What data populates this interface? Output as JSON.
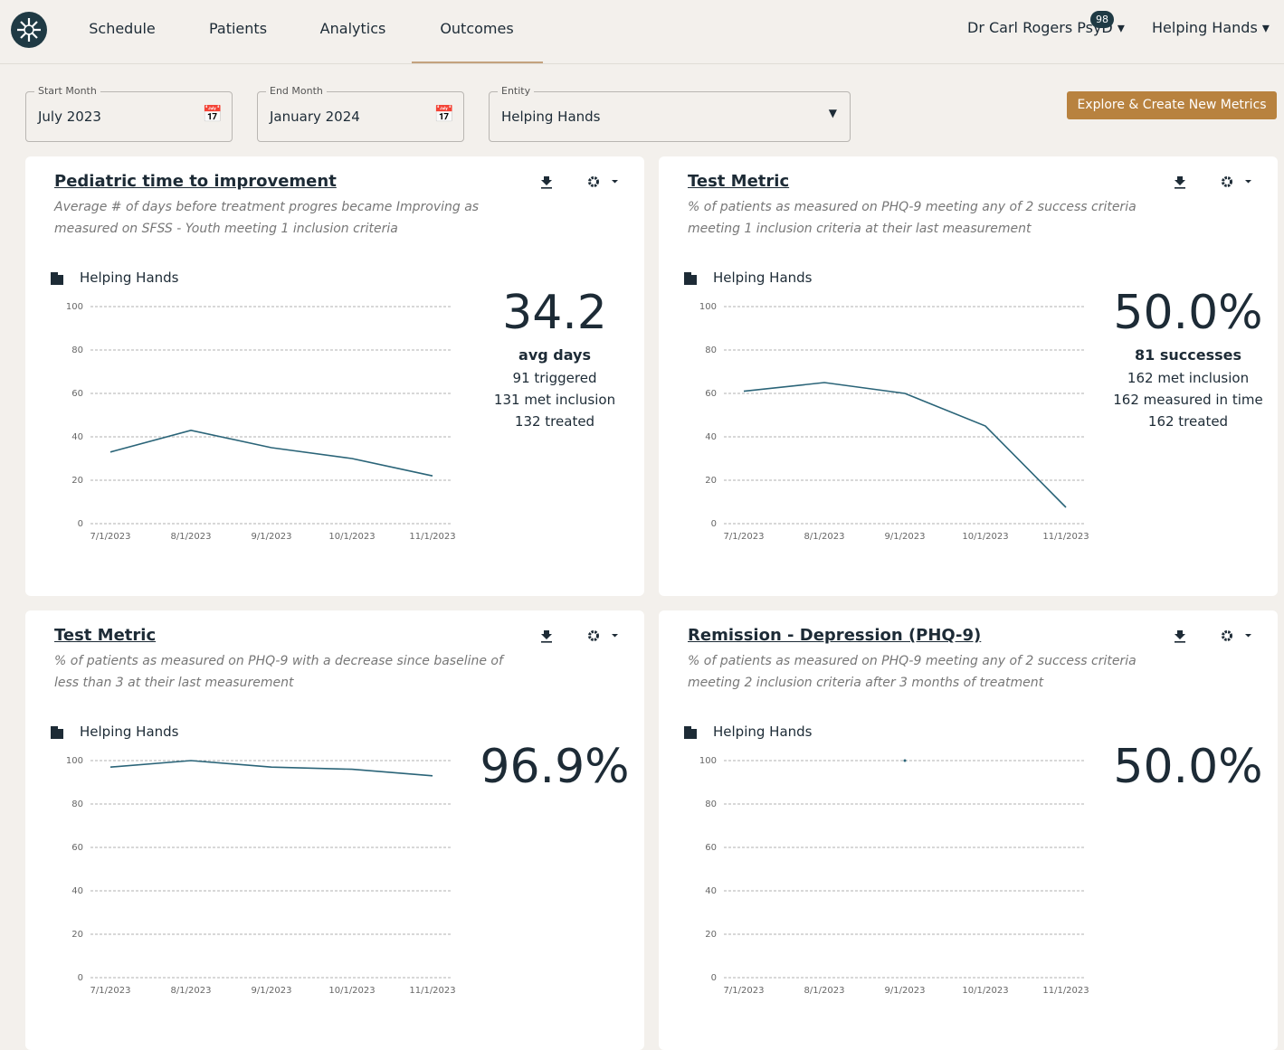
{
  "nav": {
    "items": [
      "Schedule",
      "Patients",
      "Analytics",
      "Outcomes"
    ],
    "active": 3,
    "user": "Dr Carl Rogers PsyD",
    "badge": "98",
    "org": "Helping Hands"
  },
  "filters": [
    {
      "label": "Start Month",
      "value": "July 2023"
    },
    {
      "label": "End Month",
      "value": "January 2024"
    },
    {
      "label": "Entity",
      "value": "Helping Hands"
    }
  ],
  "button": "Explore & Create New Metrics",
  "cards": [
    {
      "title": "Pediatric time to improvement",
      "description": "Average # of days before treatment progres became Improving as measured on SFSS - Youth meeting 1 inclusion criteria",
      "entity": "Helping Hands",
      "headline": "34.2",
      "stats": [
        "avg days",
        "91 triggered",
        "131 met inclusion",
        "132 treated"
      ],
      "chart_data": {
        "type": "line",
        "categories": [
          "7/1/2023",
          "8/1/2023",
          "9/1/2023",
          "10/1/2023",
          "11/1/2023"
        ],
        "values": [
          33,
          43,
          35,
          30,
          22
        ],
        "color": "#2a6478",
        "ylim": [
          0,
          100
        ],
        "yticks": [
          0,
          20,
          40,
          60,
          80,
          100
        ],
        "grid": true
      }
    },
    {
      "title": "Test Metric",
      "description": "% of patients as measured on PHQ-9 meeting any of 2 success criteria meeting 1 inclusion criteria at their last measurement",
      "entity": "Helping Hands",
      "headline": "50.0%",
      "stats": [
        "81 successes",
        "162 met inclusion",
        "162 measured in time",
        "162 treated"
      ],
      "chart_data": {
        "type": "line",
        "categories": [
          "7/1/2023",
          "8/1/2023",
          "9/1/2023",
          "10/1/2023",
          "11/1/2023"
        ],
        "values": [
          61,
          65,
          60,
          45,
          7.5
        ],
        "color": "#2a6478",
        "ylim": [
          0,
          100
        ],
        "yticks": [
          0,
          20,
          40,
          60,
          80,
          100
        ],
        "grid": true
      }
    },
    {
      "title": "Test Metric",
      "description": "% of patients as measured on PHQ-9 with a decrease since baseline of less than 3 at their last measurement",
      "entity": "Helping Hands",
      "headline": "96.9%",
      "stats": [],
      "chart_data": {
        "type": "line",
        "categories": [
          "7/1/2023",
          "8/1/2023",
          "9/1/2023",
          "10/1/2023",
          "11/1/2023"
        ],
        "values": [
          97,
          100,
          97,
          96,
          93
        ],
        "color": "#2a6478",
        "ylim": [
          0,
          100
        ],
        "yticks": [
          0,
          20,
          40,
          60,
          80,
          100
        ],
        "grid": true
      }
    },
    {
      "title": "Remission - Depression (PHQ-9)",
      "description": "% of patients as measured on PHQ-9 meeting any of 2 success criteria meeting 2 inclusion criteria after 3 months of treatment",
      "entity": "Helping Hands",
      "headline": "50.0%",
      "stats": [],
      "chart_data": {
        "type": "line",
        "categories": [
          "7/1/2023",
          "8/1/2023",
          "9/1/2023",
          "10/1/2023",
          "11/1/2023"
        ],
        "values": [
          null,
          null,
          100,
          null,
          null
        ],
        "color": "#2a6478",
        "ylim": [
          0,
          100
        ],
        "yticks": [
          0,
          20,
          40,
          60,
          80,
          100
        ],
        "grid": true
      }
    }
  ]
}
